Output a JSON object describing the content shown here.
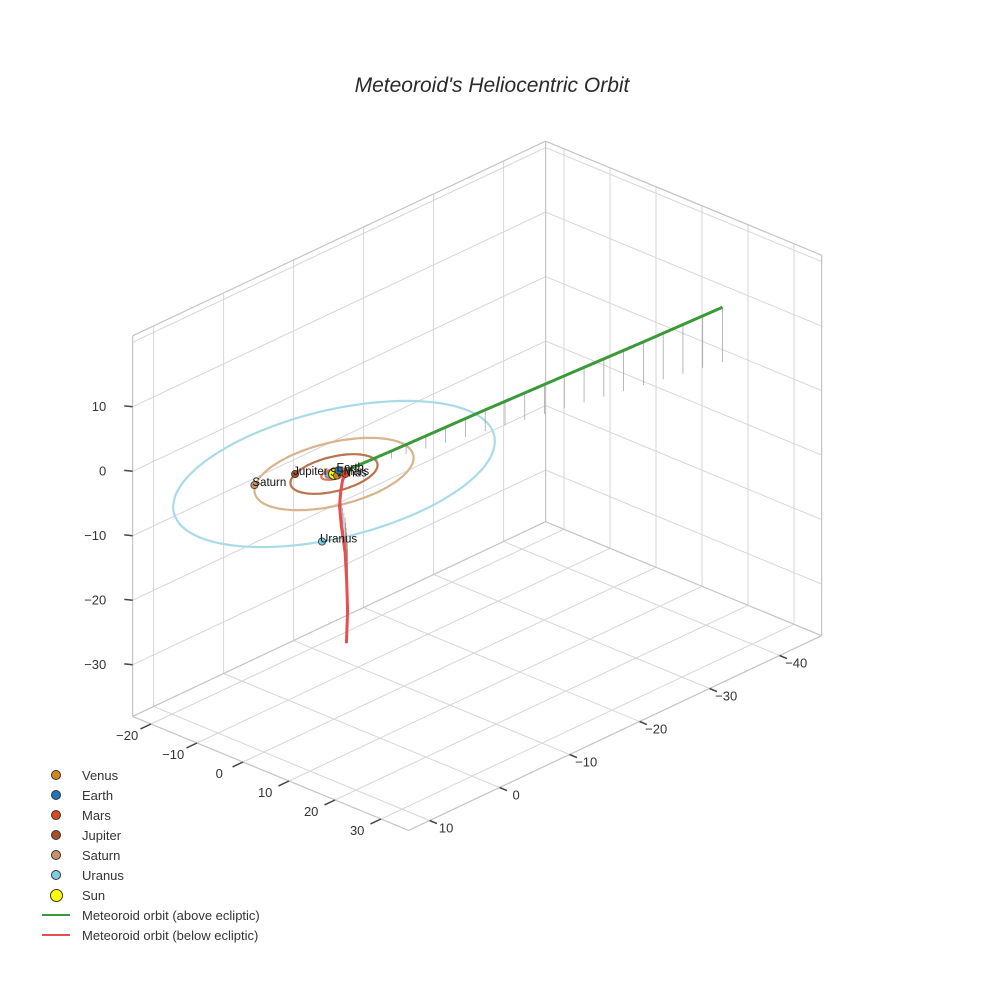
{
  "chart_data": {
    "type": "scatter3d",
    "title": "Meteoroid's Heliocentric Orbit",
    "axes": {
      "x": {
        "ticks": [
          -20,
          -10,
          0,
          10,
          20,
          30
        ]
      },
      "y": {
        "ticks": [
          10,
          0,
          -10,
          -20,
          -30,
          -40
        ]
      },
      "z": {
        "ticks": [
          10,
          0,
          -10,
          -20,
          -30
        ]
      }
    },
    "planets": [
      {
        "name": "Venus",
        "color": "#d4861c",
        "orbit_radius": 0.72,
        "x": 0.72,
        "y": 0.05,
        "z": 0
      },
      {
        "name": "Earth",
        "color": "#1f77b4",
        "orbit_radius": 1.0,
        "x": -0.4,
        "y": -0.9,
        "z": 0
      },
      {
        "name": "Mars",
        "color": "#d84a1e",
        "orbit_radius": 1.52,
        "x": 1.3,
        "y": -0.8,
        "z": 0
      },
      {
        "name": "Jupiter",
        "color": "#a65228",
        "orbit_radius": 5.2,
        "x": -4.5,
        "y": 2.6,
        "z": 0
      },
      {
        "name": "Saturn",
        "color": "#c99366",
        "orbit_radius": 9.5,
        "x": -6.5,
        "y": 7.1,
        "z": 0
      },
      {
        "name": "Uranus",
        "color": "#7ccfe2",
        "orbit_radius": 19.2,
        "x": 15.2,
        "y": 11.7,
        "z": 0
      }
    ],
    "orbit_colors": {
      "Venus": "#e6a25c",
      "Earth": "#5b9bd5",
      "Mars": "#e57354",
      "Jupiter": "#b9744e",
      "Saturn": "#d9b38c",
      "Uranus": "#a8dbe8"
    },
    "sun": {
      "name": "Sun",
      "color": "#ffff00",
      "x": 0,
      "y": 0,
      "z": 0
    },
    "meteoroid": {
      "above": {
        "name": "Meteoroid orbit (above ecliptic)",
        "color": "#3a9a3a",
        "points": [
          [
            0.9,
            -1.4,
            0.2
          ],
          [
            3.5,
            -8,
            1.5
          ],
          [
            7,
            -17,
            3.3
          ],
          [
            10.5,
            -26,
            5
          ],
          [
            14,
            -35,
            6.7
          ],
          [
            17.5,
            -44,
            8.5
          ]
        ]
      },
      "below": {
        "name": "Meteoroid orbit (below ecliptic)",
        "color": "#e84e4e",
        "points": [
          [
            0.9,
            -1.4,
            -0.1
          ],
          [
            1.6,
            -0.2,
            -0.5
          ],
          [
            3,
            1,
            -1.2
          ],
          [
            5,
            2.5,
            -2.2
          ],
          [
            8,
            4.2,
            -3.6
          ],
          [
            12,
            6.3,
            -5.4
          ],
          [
            16,
            8.7,
            -7.5
          ],
          [
            20,
            11.2,
            -9.6
          ],
          [
            24,
            14,
            -12
          ]
        ]
      }
    }
  },
  "legend": {
    "items": [
      {
        "label": "Venus",
        "kind": "dot",
        "color": "#d4861c"
      },
      {
        "label": "Earth",
        "kind": "dot",
        "color": "#1f77b4"
      },
      {
        "label": "Mars",
        "kind": "dot",
        "color": "#d84a1e"
      },
      {
        "label": "Jupiter",
        "kind": "dot",
        "color": "#a65228"
      },
      {
        "label": "Saturn",
        "kind": "dot",
        "color": "#c99366"
      },
      {
        "label": "Uranus",
        "kind": "dot",
        "color": "#7ccfe2"
      },
      {
        "label": "Sun",
        "kind": "sun",
        "color": "#ffff00"
      },
      {
        "label": "Meteoroid orbit (above ecliptic)",
        "kind": "line",
        "color": "#3a9a3a"
      },
      {
        "label": "Meteoroid orbit (below ecliptic)",
        "kind": "line",
        "color": "#e84e4e"
      }
    ]
  }
}
